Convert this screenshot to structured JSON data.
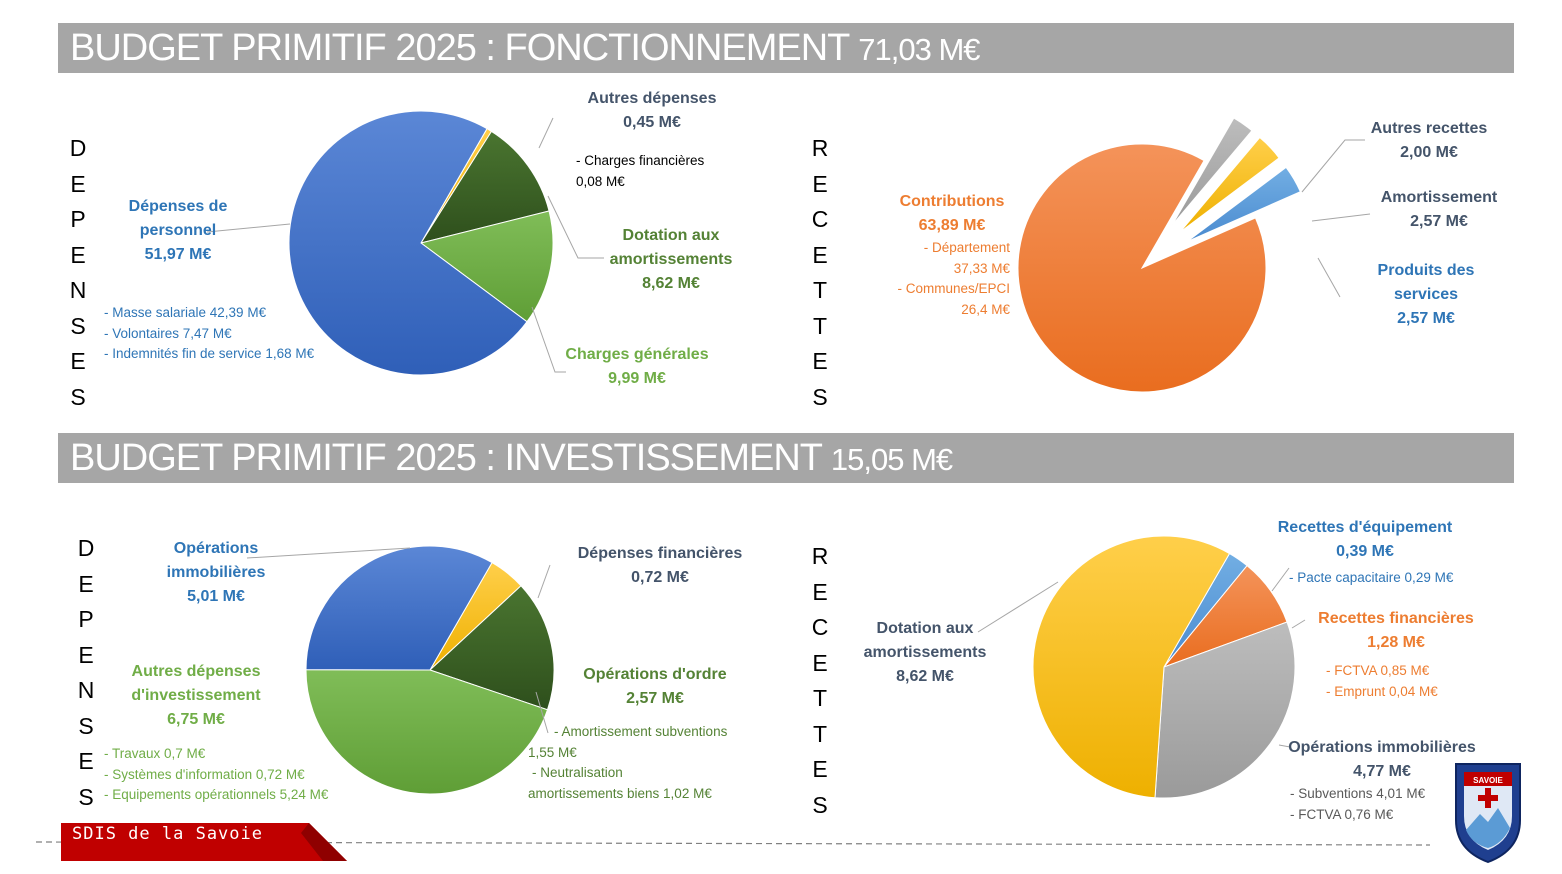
{
  "banners": {
    "fonctionnement": {
      "title": "BUDGET PRIMITIF 2025 : FONCTIONNEMENT",
      "amount": "71,03 M€"
    },
    "investissement": {
      "title": "BUDGET PRIMITIF 2025 : INVESTISSEMENT",
      "amount": "15,05 M€"
    }
  },
  "side_words": {
    "depenses": [
      "D",
      "E",
      "P",
      "E",
      "N",
      "S",
      "E",
      "S"
    ],
    "recettes": [
      "R",
      "E",
      "C",
      "E",
      "T",
      "T",
      "E",
      "S"
    ]
  },
  "footer": {
    "org": "SDIS de la Savoie",
    "brand_color": "#c00000"
  },
  "logo": {
    "text": "SAVOIE"
  },
  "labels": {
    "fd_personnel": {
      "l1": "Dépenses de",
      "l2": "personnel",
      "amt": "51,97 M€",
      "subs": [
        "- Masse salariale 42,39 M€",
        "- Volontaires 7,47 M€",
        "- Indemnités fin de service 1,68 M€"
      ]
    },
    "fd_autres": {
      "l1": "Autres dépenses",
      "amt": "0,45 M€",
      "subs": [
        "- Charges financières",
        "0,08 M€"
      ]
    },
    "fd_dotation": {
      "l1": "Dotation aux",
      "l2": "amortissements",
      "amt": "8,62 M€"
    },
    "fd_charges": {
      "l1": "Charges générales",
      "amt": "9,99 M€"
    },
    "fr_contrib": {
      "l1": "Contributions",
      "amt": "63,89 M€",
      "subs": [
        "- Département",
        "37,33 M€",
        "- Communes/EPCI",
        "26,4 M€"
      ]
    },
    "fr_autres": {
      "l1": "Autres recettes",
      "amt": "2,00 M€"
    },
    "fr_amort": {
      "l1": "Amortissement",
      "amt": "2,57 M€"
    },
    "fr_produits": {
      "l1": "Produits des",
      "l2": "services",
      "amt": "2,57 M€"
    },
    "id_immo": {
      "l1": "Opérations",
      "l2": "immobilières",
      "amt": "5,01 M€"
    },
    "id_fin": {
      "l1": "Dépenses financières",
      "amt": "0,72 M€"
    },
    "id_ordre": {
      "l1": "Opérations d'ordre",
      "amt": "2,57 M€",
      "subs": [
        "- Amortissement subventions",
        "1,55 M€",
        "- Neutralisation",
        "amortissements biens  1,02 M€"
      ]
    },
    "id_autres": {
      "l1": "Autres dépenses",
      "l2": "d'investissement",
      "amt": "6,75 M€",
      "subs": [
        "- Travaux 0,7 M€",
        "- Systèmes d'information 0,72 M€",
        "- Equipements opérationnels 5,24 M€"
      ]
    },
    "ir_dotation": {
      "l1": "Dotation aux",
      "l2": "amortissements",
      "amt": "8,62 M€"
    },
    "ir_equip": {
      "l1": "Recettes d'équipement",
      "amt": "0,39 M€",
      "subs": [
        "- Pacte capacitaire 0,29 M€"
      ]
    },
    "ir_fin": {
      "l1": "Recettes financières",
      "amt": "1,28 M€",
      "subs": [
        "- FCTVA 0,85 M€",
        "- Emprunt 0,04 M€"
      ]
    },
    "ir_immo": {
      "l1": "Opérations immobilières",
      "amt": "4,77 M€",
      "subs": [
        "- Subventions 4,01 M€",
        "- FCTVA 0,76 M€"
      ]
    }
  },
  "chart_data": [
    {
      "type": "pie",
      "title": "BUDGET PRIMITIF 2025 : FONCTIONNEMENT — DEPENSES",
      "categories": [
        "Autres dépenses",
        "Dotation aux amortissements",
        "Charges générales",
        "Dépenses de personnel"
      ],
      "values": [
        0.45,
        8.62,
        9.99,
        51.97
      ],
      "colors": [
        "#ffc000",
        "#375623",
        "#70ad47",
        "#4472c4"
      ]
    },
    {
      "type": "pie",
      "title": "BUDGET PRIMITIF 2025 : FONCTIONNEMENT — RECETTES",
      "categories": [
        "Autres recettes",
        "Amortissement",
        "Produits des services",
        "Contributions"
      ],
      "values": [
        2.0,
        2.57,
        2.57,
        63.89
      ],
      "colors": [
        "#a5a5a5",
        "#ffc000",
        "#5b9bd5",
        "#ed7d31"
      ]
    },
    {
      "type": "pie",
      "title": "BUDGET PRIMITIF 2025 : INVESTISSEMENT — DEPENSES",
      "categories": [
        "Dépenses financières",
        "Opérations d'ordre",
        "Autres dépenses d'investissement",
        "Opérations immobilières"
      ],
      "values": [
        0.72,
        2.57,
        6.75,
        5.01
      ],
      "colors": [
        "#ffc000",
        "#375623",
        "#70ad47",
        "#4472c4"
      ]
    },
    {
      "type": "pie",
      "title": "BUDGET PRIMITIF 2025 : INVESTISSEMENT — RECETTES",
      "categories": [
        "Recettes d'équipement",
        "Recettes financières",
        "Opérations immobilières",
        "Dotation aux amortissements"
      ],
      "values": [
        0.39,
        1.28,
        4.77,
        8.62
      ],
      "colors": [
        "#5b9bd5",
        "#ed7d31",
        "#a5a5a5",
        "#ffc000"
      ]
    }
  ]
}
